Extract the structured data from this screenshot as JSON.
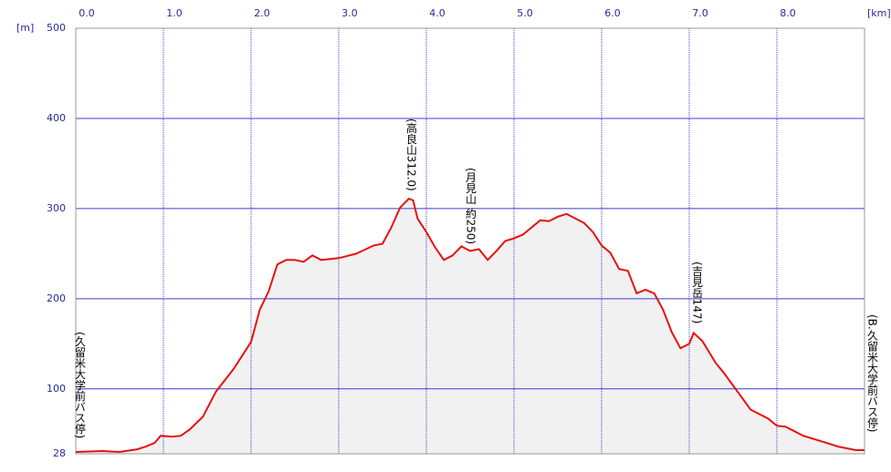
{
  "chart_data": {
    "type": "line",
    "y_unit": "[m]",
    "x_unit": "[km]",
    "xlim": [
      0,
      9.0
    ],
    "ylim": [
      28,
      500
    ],
    "xticks": [
      {
        "value": 0,
        "label": "0.0"
      },
      {
        "value": 1,
        "label": "1.0"
      },
      {
        "value": 2,
        "label": "2.0"
      },
      {
        "value": 3,
        "label": "3.0"
      },
      {
        "value": 4,
        "label": "4.0"
      },
      {
        "value": 5,
        "label": "5.0"
      },
      {
        "value": 6,
        "label": "6.0"
      },
      {
        "value": 7,
        "label": "7.0"
      },
      {
        "value": 8,
        "label": "8.0"
      }
    ],
    "yticks": [
      28,
      100,
      200,
      300,
      400,
      500
    ],
    "grid": true,
    "series": [
      {
        "color": "#e81010",
        "x": [
          0.0,
          0.3,
          0.5,
          0.7,
          0.8,
          0.9,
          0.97,
          1.1,
          1.2,
          1.3,
          1.45,
          1.6,
          1.8,
          2.0,
          2.1,
          2.2,
          2.3,
          2.4,
          2.5,
          2.6,
          2.7,
          2.8,
          3.0,
          3.2,
          3.4,
          3.5,
          3.6,
          3.7,
          3.8,
          3.85,
          3.9,
          4.0,
          4.1,
          4.2,
          4.3,
          4.4,
          4.5,
          4.6,
          4.7,
          4.8,
          4.9,
          5.0,
          5.1,
          5.2,
          5.3,
          5.4,
          5.5,
          5.6,
          5.7,
          5.8,
          5.9,
          6.0,
          6.1,
          6.2,
          6.3,
          6.4,
          6.5,
          6.6,
          6.7,
          6.8,
          6.9,
          7.0,
          7.05,
          7.15,
          7.3,
          7.4,
          7.55,
          7.7,
          7.9,
          8.0,
          8.1,
          8.3,
          8.5,
          8.7,
          8.9,
          9.0
        ],
        "values": [
          30,
          31,
          30,
          33,
          36,
          40,
          48,
          47,
          48,
          55,
          69,
          97,
          122,
          152,
          188,
          208,
          238,
          243,
          243,
          241,
          248,
          243,
          245,
          250,
          259,
          261,
          279,
          301,
          311,
          309,
          289,
          274,
          257,
          243,
          248,
          258,
          253,
          255,
          243,
          253,
          264,
          267,
          271,
          279,
          287,
          286,
          291,
          294,
          289,
          284,
          274,
          259,
          251,
          233,
          231,
          206,
          210,
          206,
          188,
          163,
          145,
          150,
          162,
          153,
          129,
          117,
          97,
          77,
          67,
          59,
          58,
          48,
          42,
          36,
          32,
          32
        ]
      }
    ],
    "annotations": [
      "(久留米大学前バス停)",
      "(高良山312.0)",
      "(月見山 約250)",
      "(吉見岳147)",
      "(B.久留米大学前バス停)"
    ]
  }
}
